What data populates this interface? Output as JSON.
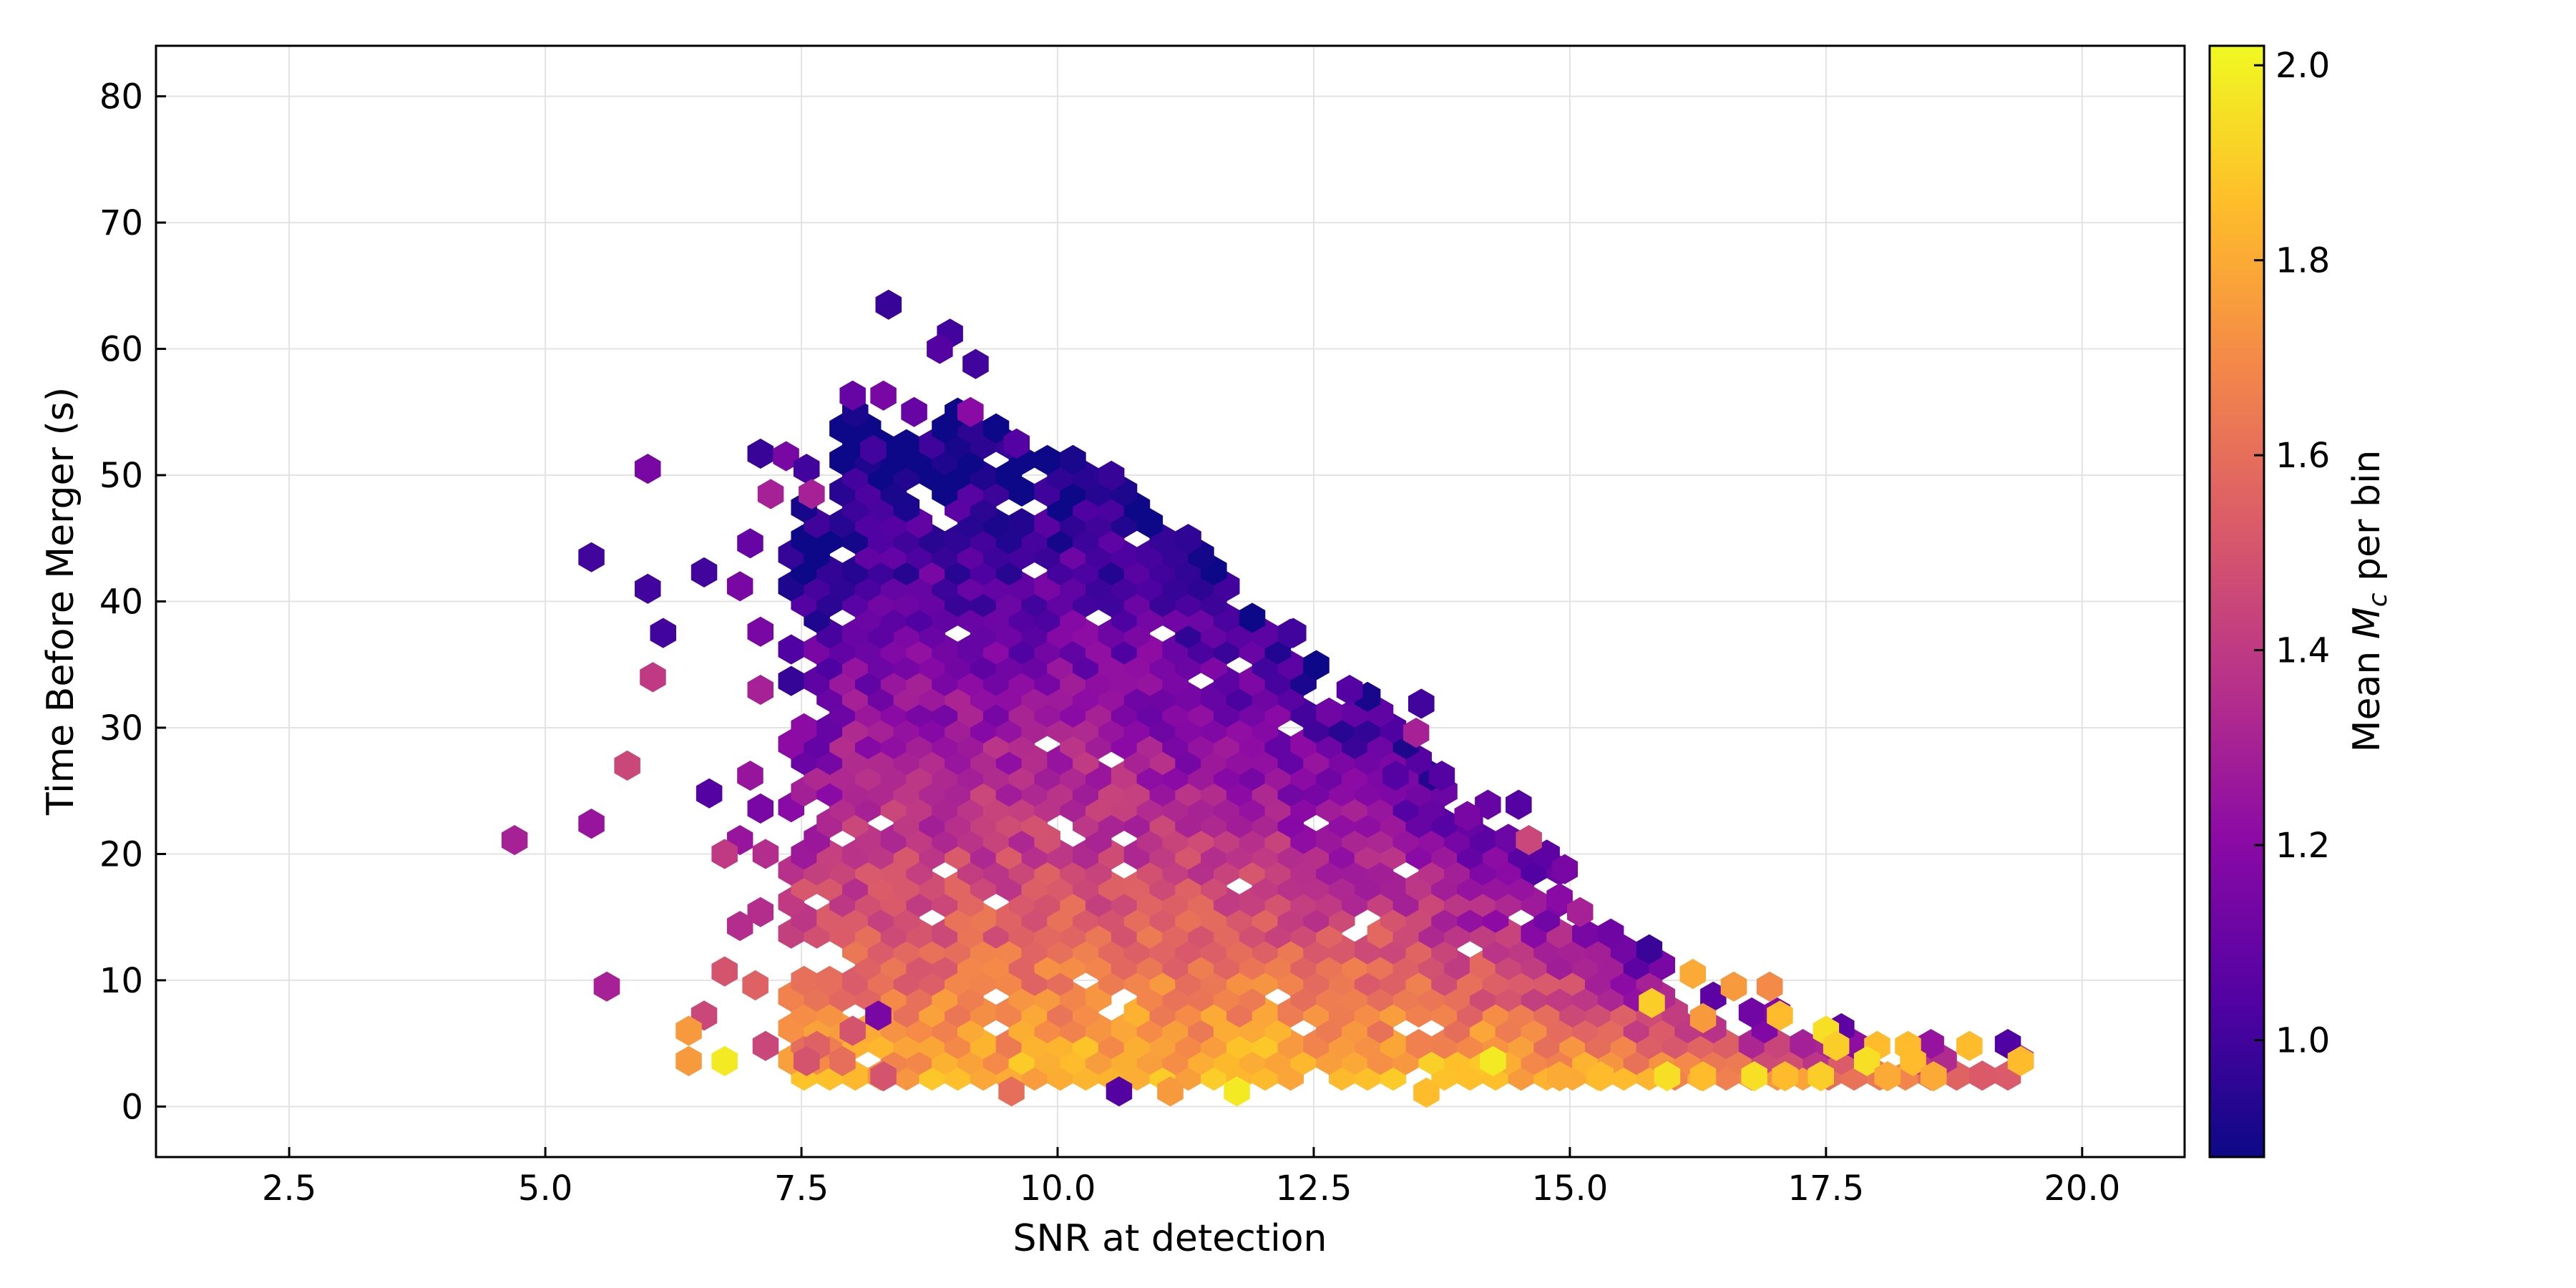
{
  "chart_data": {
    "type": "hexbin",
    "title": "",
    "xlabel": "SNR at detection",
    "ylabel": "Time Before Merger (s)",
    "colorbar_label_prefix": "Mean ",
    "colorbar_label_symbol": "M",
    "colorbar_label_subscript": "c",
    "colorbar_label_suffix": " per bin",
    "colormap": "plasma",
    "colormap_stops": [
      "#0d0887",
      "#5302a3",
      "#8b0aa5",
      "#b83289",
      "#db5c68",
      "#f48849",
      "#febd2a",
      "#f0f921"
    ],
    "xlim": [
      1.2,
      21.0
    ],
    "ylim": [
      -4,
      84
    ],
    "clim": [
      0.88,
      2.02
    ],
    "grid": true,
    "xticks": [
      2.5,
      5.0,
      7.5,
      10.0,
      12.5,
      15.0,
      17.5,
      20.0
    ],
    "xtick_labels": [
      "2.5",
      "5.0",
      "7.5",
      "10.0",
      "12.5",
      "15.0",
      "17.5",
      "20.0"
    ],
    "yticks": [
      0,
      10,
      20,
      30,
      40,
      50,
      60,
      70,
      80
    ],
    "ytick_labels": [
      "0",
      "10",
      "20",
      "30",
      "40",
      "50",
      "60",
      "70",
      "80"
    ],
    "cbar_ticks": [
      1.0,
      1.2,
      1.4,
      1.6,
      1.8,
      2.0
    ],
    "cbar_tick_labels": [
      "1.0",
      "1.2",
      "1.4",
      "1.6",
      "1.8",
      "2.0"
    ],
    "hex_grid": {
      "dx": 0.25,
      "dy": 1.25
    },
    "points": [
      [
        8.35,
        63.5,
        0.98
      ],
      [
        8.95,
        61.2,
        1.0
      ],
      [
        8.85,
        60.0,
        1.05
      ],
      [
        9.2,
        58.8,
        1.0
      ],
      [
        8.0,
        56.3,
        1.1
      ],
      [
        8.3,
        56.3,
        1.15
      ],
      [
        8.6,
        55.0,
        1.1
      ],
      [
        9.15,
        55.0,
        1.2
      ],
      [
        9.6,
        52.5,
        1.05
      ],
      [
        6.0,
        50.5,
        1.15
      ],
      [
        7.1,
        51.7,
        0.98
      ],
      [
        7.35,
        51.5,
        1.15
      ],
      [
        7.55,
        50.5,
        1.0
      ],
      [
        8.2,
        52.0,
        1.0
      ],
      [
        7.2,
        48.5,
        1.3
      ],
      [
        7.6,
        48.5,
        1.3
      ],
      [
        5.45,
        43.5,
        1.0
      ],
      [
        6.0,
        41.0,
        1.0
      ],
      [
        6.55,
        42.3,
        1.0
      ],
      [
        7.0,
        44.6,
        1.1
      ],
      [
        6.9,
        41.2,
        1.15
      ],
      [
        6.15,
        37.5,
        1.0
      ],
      [
        7.1,
        37.6,
        1.15
      ],
      [
        6.05,
        34.0,
        1.4
      ],
      [
        7.1,
        33.0,
        1.3
      ],
      [
        5.8,
        27.0,
        1.45
      ],
      [
        6.6,
        24.8,
        1.05
      ],
      [
        7.0,
        26.2,
        1.25
      ],
      [
        7.1,
        23.6,
        1.15
      ],
      [
        4.7,
        21.1,
        1.3
      ],
      [
        5.45,
        22.4,
        1.25
      ],
      [
        6.9,
        21.1,
        1.25
      ],
      [
        6.75,
        20.0,
        1.4
      ],
      [
        7.15,
        20.0,
        1.35
      ],
      [
        5.6,
        9.5,
        1.3
      ],
      [
        6.55,
        7.2,
        1.45
      ],
      [
        6.4,
        6.0,
        1.75
      ],
      [
        6.4,
        3.6,
        1.75
      ],
      [
        6.75,
        3.6,
        1.98
      ],
      [
        7.15,
        4.8,
        1.45
      ],
      [
        6.9,
        14.3,
        1.35
      ],
      [
        7.1,
        15.4,
        1.35
      ],
      [
        6.75,
        10.7,
        1.5
      ],
      [
        7.05,
        9.6,
        1.55
      ],
      [
        12.3,
        37.5,
        1.0
      ],
      [
        13.55,
        31.9,
        1.0
      ],
      [
        13.5,
        29.6,
        1.3
      ],
      [
        12.85,
        33.0,
        1.05
      ],
      [
        13.3,
        26.2,
        1.05
      ],
      [
        13.75,
        26.2,
        1.05
      ],
      [
        14.2,
        23.9,
        1.1
      ],
      [
        14.5,
        23.9,
        1.05
      ],
      [
        14.0,
        23.0,
        1.15
      ],
      [
        14.6,
        21.1,
        1.45
      ],
      [
        14.95,
        18.8,
        1.15
      ],
      [
        14.9,
        16.5,
        1.2
      ],
      [
        15.1,
        15.4,
        1.3
      ],
      [
        15.8,
        8.2,
        1.9
      ],
      [
        16.2,
        10.5,
        1.8
      ],
      [
        16.6,
        9.5,
        1.75
      ],
      [
        16.95,
        9.5,
        1.7
      ],
      [
        16.3,
        7.0,
        1.75
      ],
      [
        17.05,
        7.2,
        1.85
      ],
      [
        17.5,
        6.0,
        1.95
      ],
      [
        17.6,
        4.8,
        1.9
      ],
      [
        18.0,
        4.8,
        1.85
      ],
      [
        18.3,
        4.8,
        1.85
      ],
      [
        18.9,
        4.8,
        1.85
      ],
      [
        17.9,
        3.6,
        1.95
      ],
      [
        18.35,
        3.6,
        1.85
      ],
      [
        19.4,
        3.6,
        1.85
      ],
      [
        18.55,
        2.4,
        1.8
      ],
      [
        18.1,
        2.4,
        1.8
      ],
      [
        17.45,
        2.4,
        1.9
      ],
      [
        16.8,
        2.4,
        1.95
      ],
      [
        17.1,
        2.4,
        1.85
      ],
      [
        16.3,
        2.4,
        1.85
      ],
      [
        15.95,
        2.4,
        1.95
      ],
      [
        15.3,
        2.4,
        1.85
      ],
      [
        14.9,
        2.4,
        1.8
      ],
      [
        14.25,
        3.6,
        1.98
      ],
      [
        13.6,
        1.1,
        1.85
      ],
      [
        11.75,
        1.2,
        1.98
      ],
      [
        11.1,
        1.2,
        1.75
      ],
      [
        10.6,
        1.2,
        1.05
      ],
      [
        9.55,
        1.2,
        1.6
      ],
      [
        8.3,
        2.4,
        1.5
      ],
      [
        7.65,
        4.8,
        1.55
      ],
      [
        7.55,
        3.6,
        1.5
      ],
      [
        7.9,
        3.6,
        1.6
      ],
      [
        8.0,
        6.0,
        1.5
      ],
      [
        8.25,
        7.2,
        1.15
      ]
    ],
    "density_model": {
      "note": "filled region of hexagonal bins",
      "x_min": 7.4,
      "upper_bound": [
        [
          7.4,
          47
        ],
        [
          8.0,
          56
        ],
        [
          8.8,
          56
        ],
        [
          9.6,
          53
        ],
        [
          10.2,
          51.5
        ],
        [
          10.8,
          49
        ],
        [
          11.4,
          44
        ],
        [
          12.0,
          40
        ],
        [
          12.6,
          35
        ],
        [
          13.2,
          32
        ],
        [
          13.8,
          27
        ],
        [
          14.4,
          23
        ],
        [
          15.0,
          19
        ],
        [
          15.6,
          14
        ],
        [
          16.2,
          10
        ],
        [
          17.0,
          8
        ],
        [
          17.8,
          6
        ],
        [
          19.0,
          5
        ]
      ],
      "lower_bound": 1.5
    }
  }
}
